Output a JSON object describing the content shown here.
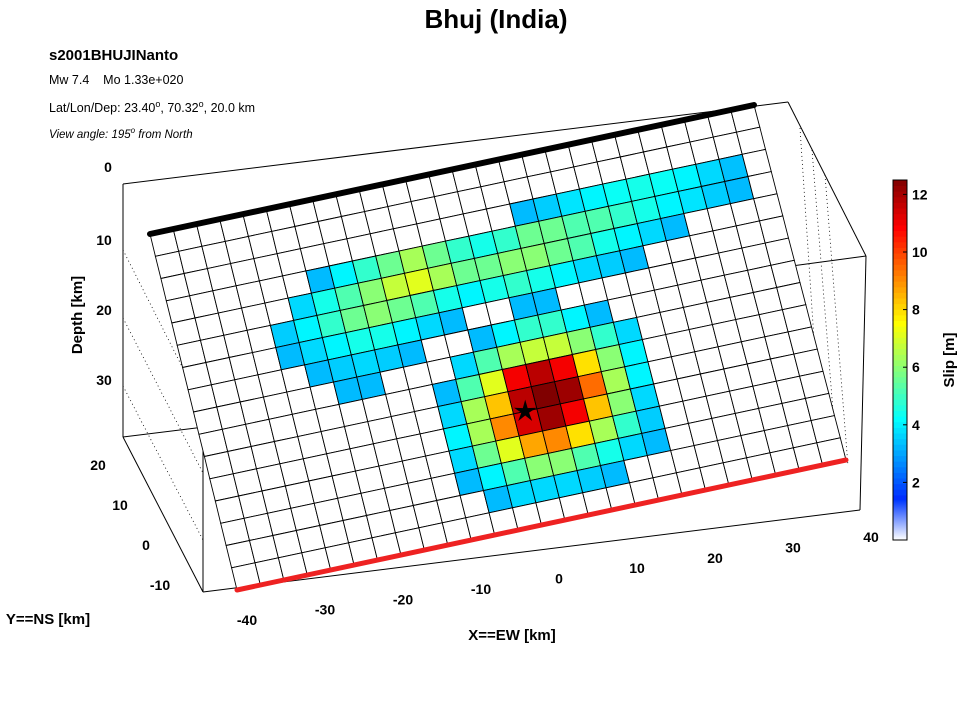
{
  "chart_data": {
    "type": "heatmap",
    "title": "Bhuj (India)",
    "info": {
      "event_id": "s2001BHUJINanto",
      "magnitude_line": "Mw 7.4    Mo 1.33e+020",
      "location_prefix": "Lat/Lon/Dep: ",
      "lat": "23.40",
      "lon": "70.32",
      "dep": "20.0 km",
      "degree_mark": "o",
      "view_prefix": "View angle: ",
      "view_value": "195",
      "view_suffix": " from North"
    },
    "xlabel": "X==EW [km]",
    "ylabel": "Y==NS [km]",
    "zlabel": "Depth [km]",
    "x_ticks": [
      "-40",
      "-30",
      "-20",
      "-10",
      "0",
      "10",
      "20",
      "30",
      "40"
    ],
    "y_ticks": [
      "20",
      "10",
      "0",
      "-10"
    ],
    "z_ticks": [
      "0",
      "10",
      "20",
      "30"
    ],
    "colorbar": {
      "label": "Slip [m]",
      "ticks": [
        "2",
        "4",
        "6",
        "8",
        "10",
        "12"
      ],
      "range": [
        0,
        12.5
      ],
      "colormap": "jet"
    },
    "grid": {
      "columns": 26,
      "rows": 16
    },
    "slip_m": [
      [
        0,
        0,
        0,
        0,
        0,
        0,
        0,
        0,
        0,
        0,
        0,
        0,
        0,
        0,
        0,
        0,
        0,
        0,
        0,
        0,
        0,
        0,
        0,
        0,
        0,
        0
      ],
      [
        0,
        0,
        0,
        0,
        0,
        0,
        0,
        0,
        0,
        0,
        0,
        0,
        0,
        0,
        0,
        0,
        0,
        0,
        0,
        0,
        0,
        0,
        0,
        0,
        0,
        0
      ],
      [
        0,
        0,
        0,
        0,
        0,
        0,
        0,
        0,
        0,
        0,
        0,
        0,
        0,
        0,
        0,
        0.5,
        0.8,
        1.2,
        1.5,
        1.8,
        2.0,
        1.8,
        1.5,
        1.0,
        0.6,
        0
      ],
      [
        0,
        0,
        0,
        0,
        0,
        0,
        0.5,
        1.5,
        2.5,
        3.5,
        4.5,
        3.5,
        2.5,
        2.0,
        2.5,
        3.5,
        3.5,
        3.0,
        3.0,
        2.5,
        2.0,
        1.5,
        1.2,
        0.8,
        0.5,
        0
      ],
      [
        0,
        0,
        0,
        0,
        0,
        1.0,
        2.0,
        3.0,
        4.0,
        5.0,
        5.5,
        4.5,
        3.5,
        3.5,
        4.0,
        4.0,
        3.5,
        3.0,
        2.0,
        1.5,
        1.0,
        0.5,
        0,
        0,
        0,
        0
      ],
      [
        0,
        0,
        0,
        0,
        0.8,
        1.5,
        2.5,
        3.5,
        4.0,
        3.5,
        3.0,
        2.0,
        1.5,
        2.0,
        2.5,
        2.0,
        1.5,
        1.0,
        0.8,
        0.5,
        0,
        0,
        0,
        0,
        0,
        0
      ],
      [
        0,
        0,
        0,
        0,
        0.5,
        1.0,
        1.5,
        2.0,
        2.0,
        1.5,
        1.0,
        0.5,
        0,
        0,
        0.5,
        0.5,
        0,
        0,
        0,
        0,
        0,
        0,
        0,
        0,
        0,
        0
      ],
      [
        0,
        0,
        0,
        0,
        0,
        0.5,
        0.8,
        1.0,
        0.8,
        0.5,
        0,
        0,
        0.5,
        1.5,
        2.5,
        2.5,
        1.5,
        0.5,
        0,
        0,
        0,
        0,
        0,
        0,
        0,
        0
      ],
      [
        0,
        0,
        0,
        0,
        0,
        0,
        0.5,
        0.5,
        0,
        0,
        0,
        1.0,
        3.0,
        4.5,
        5.0,
        5.0,
        4.0,
        2.5,
        1.0,
        0,
        0,
        0,
        0,
        0,
        0,
        0
      ],
      [
        0,
        0,
        0,
        0,
        0,
        0,
        0,
        0,
        0,
        0,
        0.5,
        3.0,
        5.5,
        10.5,
        11.5,
        10.5,
        6.5,
        4.0,
        1.5,
        0,
        0,
        0,
        0,
        0,
        0,
        0
      ],
      [
        0,
        0,
        0,
        0,
        0,
        0,
        0,
        0,
        0,
        0,
        1.0,
        4.5,
        7.0,
        11.5,
        12.5,
        12.0,
        8.5,
        4.5,
        1.5,
        0,
        0,
        0,
        0,
        0,
        0,
        0
      ],
      [
        0,
        0,
        0,
        0,
        0,
        0,
        0,
        0,
        0,
        0,
        1.5,
        4.5,
        8.0,
        11.0,
        12.0,
        10.5,
        7.0,
        4.0,
        1.0,
        0,
        0,
        0,
        0,
        0,
        0,
        0
      ],
      [
        0,
        0,
        0,
        0,
        0,
        0,
        0,
        0,
        0,
        0,
        1.0,
        3.5,
        5.5,
        7.5,
        8.0,
        6.5,
        4.5,
        2.5,
        0.8,
        0,
        0,
        0,
        0,
        0,
        0,
        0
      ],
      [
        0,
        0,
        0,
        0,
        0,
        0,
        0,
        0,
        0,
        0,
        0.5,
        1.5,
        3.0,
        4.0,
        4.0,
        3.0,
        2.0,
        1.0,
        0.5,
        0,
        0,
        0,
        0,
        0,
        0,
        0
      ],
      [
        0,
        0,
        0,
        0,
        0,
        0,
        0,
        0,
        0,
        0,
        0,
        0.5,
        1.0,
        1.0,
        1.0,
        0.8,
        0.5,
        0,
        0,
        0,
        0,
        0,
        0,
        0,
        0,
        0
      ],
      [
        0,
        0,
        0,
        0,
        0,
        0,
        0,
        0,
        0,
        0,
        0,
        0,
        0,
        0,
        0,
        0,
        0,
        0,
        0,
        0,
        0,
        0,
        0,
        0,
        0,
        0
      ]
    ],
    "hypocenter": {
      "column": 13.5,
      "row": 11.0
    },
    "colors": {
      "top_edge": "#000000",
      "bottom_edge": "#ee2222",
      "grid": "#000000",
      "background": "#ffffff"
    }
  }
}
